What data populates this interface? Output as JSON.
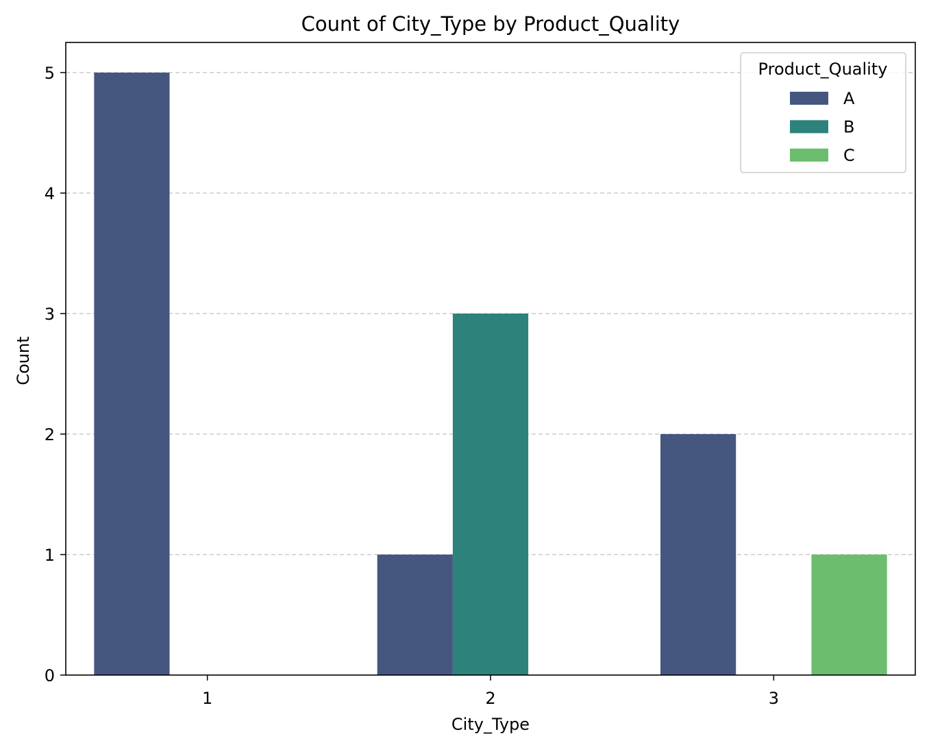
{
  "chart_data": {
    "type": "bar",
    "title": "Count of City_Type by Product_Quality",
    "xlabel": "City_Type",
    "ylabel": "Count",
    "categories": [
      "1",
      "2",
      "3"
    ],
    "series": [
      {
        "name": "A",
        "color": "#46577f",
        "values": [
          5,
          1,
          2
        ]
      },
      {
        "name": "B",
        "color": "#2e827c",
        "values": [
          0,
          3,
          0
        ]
      },
      {
        "name": "C",
        "color": "#6cbd6d",
        "values": [
          0,
          0,
          1
        ]
      }
    ],
    "yticks": [
      "0",
      "1",
      "2",
      "3",
      "4",
      "5"
    ],
    "ylim": [
      0,
      5.25
    ],
    "grid": "y-dashed",
    "legend": {
      "title": "Product_Quality",
      "placement": "top-right"
    }
  }
}
